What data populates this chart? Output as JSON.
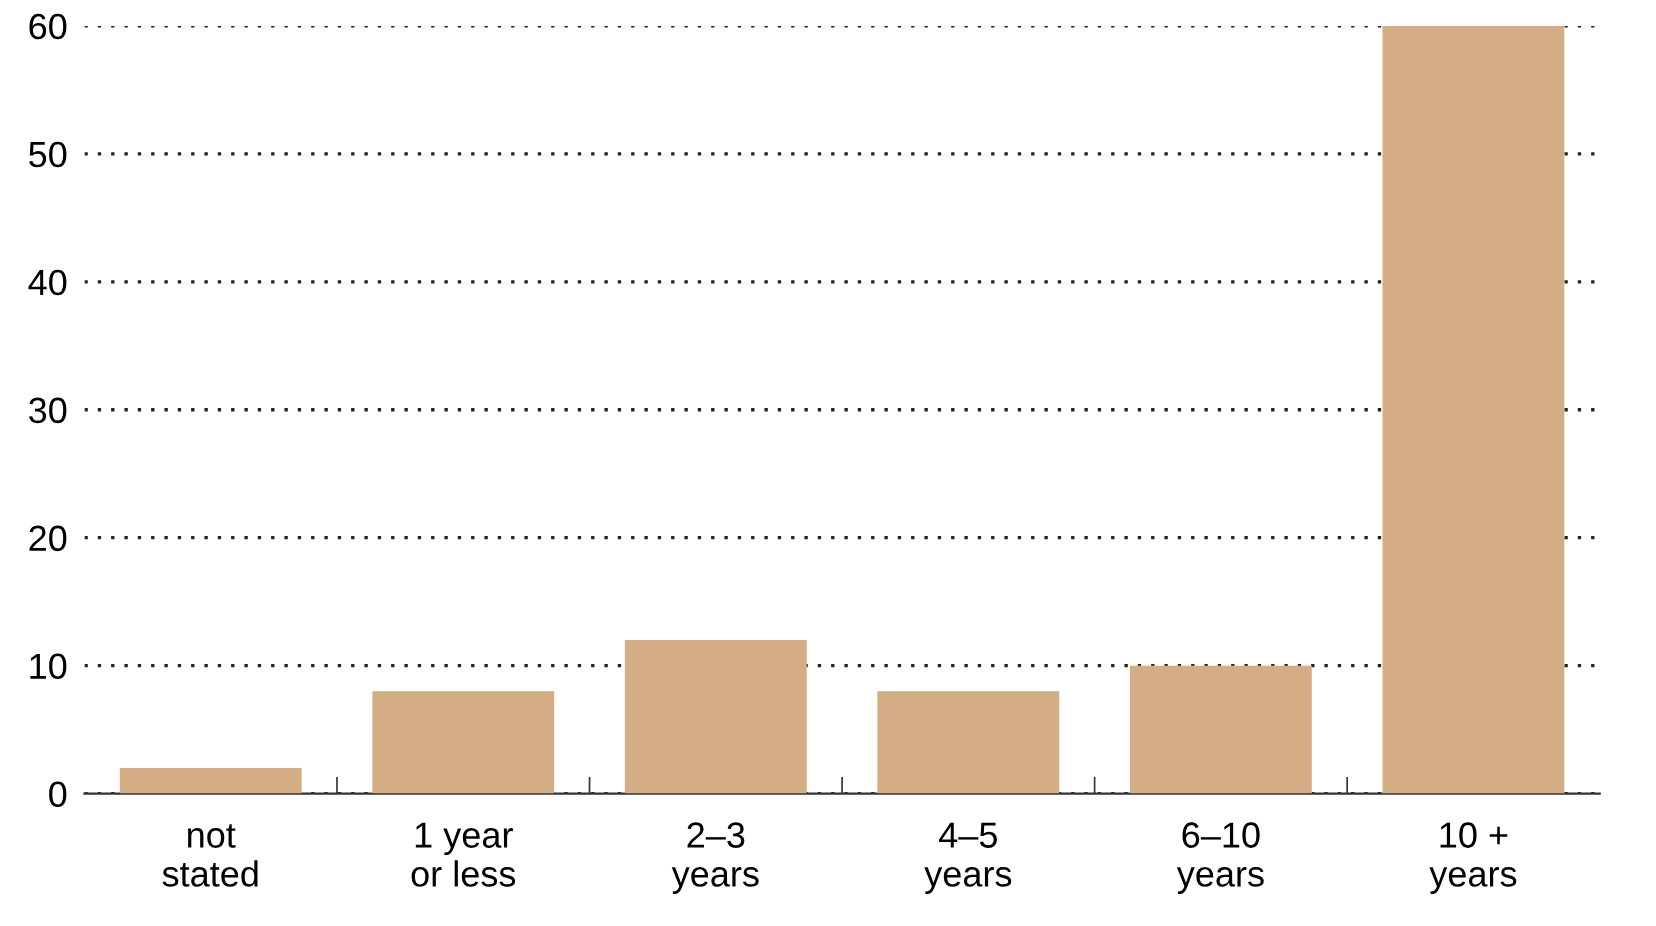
{
  "chart_data": {
    "type": "bar",
    "categories": [
      "not\nstated",
      "1 year\nor less",
      "2–3\nyears",
      "4–5\nyears",
      "6–10\nyears",
      "10 +\nyears"
    ],
    "values": [
      2,
      8,
      12,
      8,
      10,
      60
    ],
    "color": "#d4ad84",
    "ylim": [
      0,
      60
    ],
    "yticks": [
      0,
      10,
      20,
      30,
      40,
      50,
      60
    ],
    "grid": "y"
  }
}
